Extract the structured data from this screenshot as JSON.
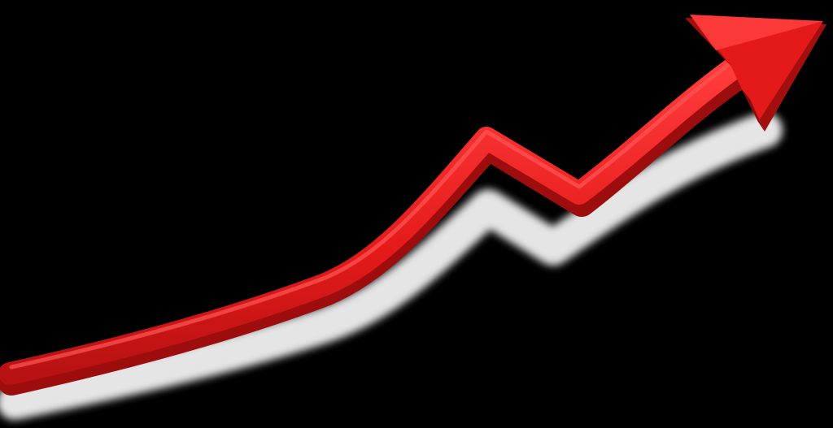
{
  "colors": {
    "background": "#000000",
    "arrow": "#e41a1a",
    "arrow_dark": "#a30f0f",
    "arrow_highlight": "#ff4a4a",
    "shadow": "#ffffff"
  },
  "icon": "upward-trend-arrow-icon"
}
